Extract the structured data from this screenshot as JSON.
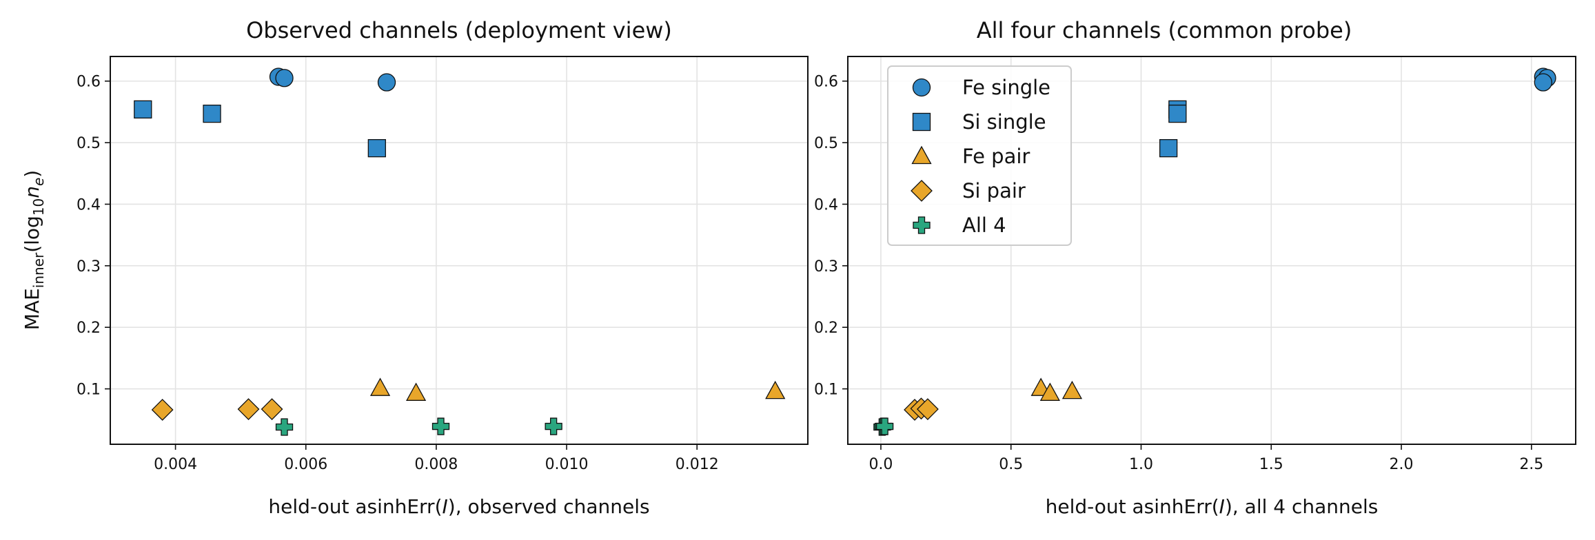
{
  "colors": {
    "blue": "#2f88c8",
    "orange": "#e8a62a",
    "green": "#2aa67f",
    "grid": "#e3e3e3",
    "edge": "#111111"
  },
  "legend": {
    "placement": "top-left",
    "entries": [
      {
        "label": "Fe single",
        "marker": "circle",
        "color": "blue"
      },
      {
        "label": "Si single",
        "marker": "square",
        "color": "blue"
      },
      {
        "label": "Fe pair",
        "marker": "triangle",
        "color": "orange"
      },
      {
        "label": "Si pair",
        "marker": "diamond",
        "color": "orange"
      },
      {
        "label": "All 4",
        "marker": "plus",
        "color": "green"
      }
    ]
  },
  "ylabel": {
    "base": "MAE",
    "sub": "inner",
    "open": "(log",
    "sub2": "10",
    "var": "n",
    "varsub": "e",
    "close": ")"
  },
  "chart_data": [
    {
      "type": "scatter",
      "title": "Observed channels (deployment view)",
      "xlabel": {
        "pre": "held-out asinhErr(",
        "var": "I",
        "post": "), observed channels"
      },
      "xlim": [
        0.003,
        0.0137
      ],
      "ylim": [
        0.01,
        0.64
      ],
      "xticks": [
        {
          "v": 0.004,
          "label": "0.004"
        },
        {
          "v": 0.006,
          "label": "0.006"
        },
        {
          "v": 0.008,
          "label": "0.008"
        },
        {
          "v": 0.01,
          "label": "0.010"
        },
        {
          "v": 0.012,
          "label": "0.012"
        }
      ],
      "yticks": [
        {
          "v": 0.1,
          "label": "0.1"
        },
        {
          "v": 0.2,
          "label": "0.2"
        },
        {
          "v": 0.3,
          "label": "0.3"
        },
        {
          "v": 0.4,
          "label": "0.4"
        },
        {
          "v": 0.5,
          "label": "0.5"
        },
        {
          "v": 0.6,
          "label": "0.6"
        }
      ],
      "grid": true,
      "series": [
        {
          "name": "Fe single",
          "marker": "circle",
          "color": "blue",
          "points": [
            [
              0.00558,
              0.607
            ],
            [
              0.00567,
              0.605
            ],
            [
              0.00724,
              0.598
            ]
          ]
        },
        {
          "name": "Si single",
          "marker": "square",
          "color": "blue",
          "points": [
            [
              0.0035,
              0.554
            ],
            [
              0.00456,
              0.547
            ],
            [
              0.00709,
              0.491
            ]
          ]
        },
        {
          "name": "Fe pair",
          "marker": "triangle",
          "color": "orange",
          "points": [
            [
              0.00714,
              0.101
            ],
            [
              0.00769,
              0.093
            ],
            [
              0.0132,
              0.096
            ]
          ]
        },
        {
          "name": "Si pair",
          "marker": "diamond",
          "color": "orange",
          "points": [
            [
              0.0038,
              0.066
            ],
            [
              0.00512,
              0.067
            ],
            [
              0.00548,
              0.067
            ]
          ]
        },
        {
          "name": "All 4",
          "marker": "plus",
          "color": "green",
          "points": [
            [
              0.00567,
              0.038
            ],
            [
              0.00807,
              0.039
            ],
            [
              0.0098,
              0.039
            ]
          ]
        }
      ]
    },
    {
      "type": "scatter",
      "title": "All four channels (common probe)",
      "xlabel": {
        "pre": "held-out asinhErr(",
        "var": "I",
        "post": "), all 4 channels"
      },
      "xlim": [
        -0.127,
        2.67
      ],
      "ylim": [
        0.01,
        0.64
      ],
      "xticks": [
        {
          "v": 0.0,
          "label": "0.0"
        },
        {
          "v": 0.5,
          "label": "0.5"
        },
        {
          "v": 1.0,
          "label": "1.0"
        },
        {
          "v": 1.5,
          "label": "1.5"
        },
        {
          "v": 2.0,
          "label": "2.0"
        },
        {
          "v": 2.5,
          "label": "2.5"
        }
      ],
      "yticks": [
        {
          "v": 0.1,
          "label": "0.1"
        },
        {
          "v": 0.2,
          "label": "0.2"
        },
        {
          "v": 0.3,
          "label": "0.3"
        },
        {
          "v": 0.4,
          "label": "0.4"
        },
        {
          "v": 0.5,
          "label": "0.5"
        },
        {
          "v": 0.6,
          "label": "0.6"
        }
      ],
      "grid": true,
      "series": [
        {
          "name": "Fe single",
          "marker": "circle",
          "color": "blue",
          "points": [
            [
              2.545,
              0.607
            ],
            [
              2.56,
              0.605
            ],
            [
              2.545,
              0.598
            ]
          ]
        },
        {
          "name": "Si single",
          "marker": "square",
          "color": "blue",
          "points": [
            [
              1.14,
              0.554
            ],
            [
              1.14,
              0.547
            ],
            [
              1.105,
              0.491
            ]
          ]
        },
        {
          "name": "Fe pair",
          "marker": "triangle",
          "color": "orange",
          "points": [
            [
              0.615,
              0.101
            ],
            [
              0.65,
              0.093
            ],
            [
              0.735,
              0.096
            ]
          ]
        },
        {
          "name": "Si pair",
          "marker": "diamond",
          "color": "orange",
          "points": [
            [
              0.13,
              0.066
            ],
            [
              0.155,
              0.068
            ],
            [
              0.18,
              0.067
            ]
          ]
        },
        {
          "name": "All 4",
          "marker": "plus",
          "color": "green",
          "points": [
            [
              0.005,
              0.038
            ],
            [
              0.01,
              0.039
            ],
            [
              0.015,
              0.039
            ]
          ]
        }
      ]
    }
  ]
}
